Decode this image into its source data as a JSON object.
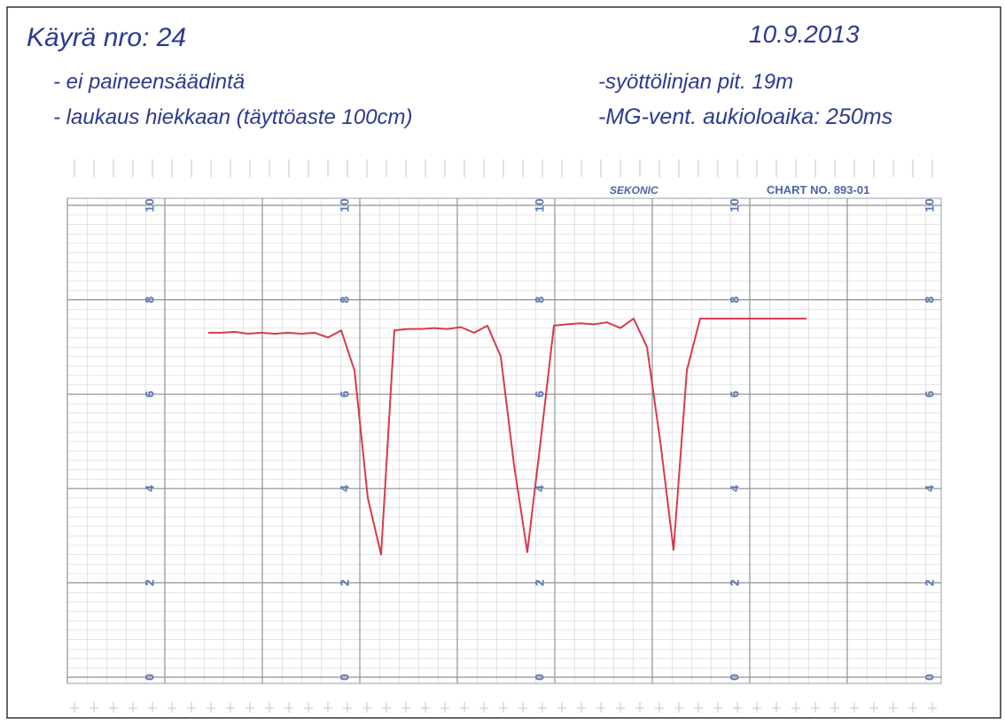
{
  "notes": {
    "title": "Käyrä nro: 24",
    "date": "10.9.2013",
    "left": [
      "- ei paineensäädintä",
      "- laukaus hiekkaan (täyttöaste 100cm)"
    ],
    "right": [
      "-syöttölinjan pit. 19m",
      "-MG-vent. aukioloaika: 250ms"
    ]
  },
  "paper": {
    "brand": "SEKONIC",
    "chart_no": "CHART NO. 893-01"
  },
  "chart_data": {
    "type": "line",
    "ylim": [
      0,
      10
    ],
    "yticks": [
      0,
      2,
      4,
      6,
      8,
      10
    ],
    "grid": true,
    "categories": [
      null,
      null,
      null,
      null,
      null,
      null,
      null,
      null,
      null,
      null,
      null,
      null,
      null,
      null,
      null,
      null,
      null,
      null,
      null,
      null,
      null,
      null,
      null,
      null,
      null,
      null,
      null,
      null,
      null,
      null,
      null,
      null,
      null,
      null,
      null,
      null,
      null,
      null,
      null,
      null,
      null,
      null,
      null,
      null,
      null,
      null
    ],
    "series": [
      {
        "color": "#d83a4a",
        "values": [
          7.3,
          7.3,
          7.32,
          7.28,
          7.3,
          7.28,
          7.3,
          7.28,
          7.3,
          7.2,
          7.35,
          6.5,
          3.8,
          2.6,
          7.35,
          7.38,
          7.38,
          7.4,
          7.38,
          7.42,
          7.3,
          7.45,
          6.8,
          4.5,
          2.65,
          5.0,
          7.45,
          7.48,
          7.5,
          7.48,
          7.52,
          7.4,
          7.6,
          7.0,
          5.0,
          2.7,
          6.5,
          7.6,
          7.6,
          7.6,
          7.6,
          7.6,
          7.6,
          7.6,
          7.6,
          7.6
        ]
      }
    ]
  }
}
